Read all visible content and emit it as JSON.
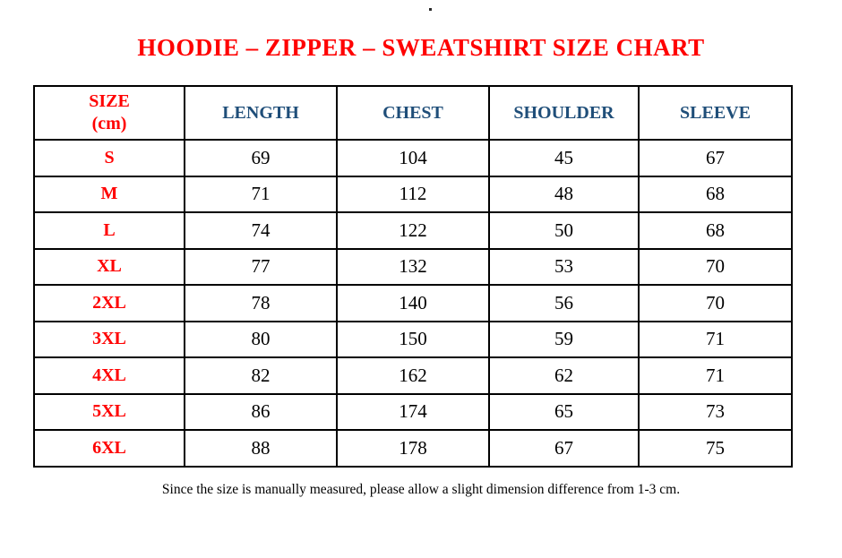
{
  "document": {
    "stray_mark": ".",
    "title": "HOODIE – ZIPPER – SWEATSHIRT SIZE CHART",
    "footnote": "Since the size is manually measured, please allow a slight dimension difference from 1-3 cm."
  },
  "colors": {
    "title_red": "#ff0000",
    "header_blue": "#1f4e79",
    "size_label_red": "#ff0000",
    "value_black": "#000000",
    "border_black": "#000000"
  },
  "table": {
    "header": {
      "size_line1": "SIZE",
      "size_line2": "(cm)",
      "length": "LENGTH",
      "chest": "CHEST",
      "shoulder": "SHOULDER",
      "sleeve": "SLEEVE"
    },
    "rows": [
      {
        "size": "S",
        "length": "69",
        "chest": "104",
        "shoulder": "45",
        "sleeve": "67"
      },
      {
        "size": "M",
        "length": "71",
        "chest": "112",
        "shoulder": "48",
        "sleeve": "68"
      },
      {
        "size": "L",
        "length": "74",
        "chest": "122",
        "shoulder": "50",
        "sleeve": "68"
      },
      {
        "size": "XL",
        "length": "77",
        "chest": "132",
        "shoulder": "53",
        "sleeve": "70"
      },
      {
        "size": "2XL",
        "length": "78",
        "chest": "140",
        "shoulder": "56",
        "sleeve": "70"
      },
      {
        "size": "3XL",
        "length": "80",
        "chest": "150",
        "shoulder": "59",
        "sleeve": "71"
      },
      {
        "size": "4XL",
        "length": "82",
        "chest": "162",
        "shoulder": "62",
        "sleeve": "71"
      },
      {
        "size": "5XL",
        "length": "86",
        "chest": "174",
        "shoulder": "65",
        "sleeve": "73"
      },
      {
        "size": "6XL",
        "length": "88",
        "chest": "178",
        "shoulder": "67",
        "sleeve": "75"
      }
    ]
  },
  "chart_data": {
    "type": "table",
    "title": "HOODIE – ZIPPER – SWEATSHIRT SIZE CHART",
    "columns": [
      "SIZE (cm)",
      "LENGTH",
      "CHEST",
      "SHOULDER",
      "SLEEVE"
    ],
    "rows": [
      [
        "S",
        69,
        104,
        45,
        67
      ],
      [
        "M",
        71,
        112,
        48,
        68
      ],
      [
        "L",
        74,
        122,
        50,
        68
      ],
      [
        "XL",
        77,
        132,
        53,
        70
      ],
      [
        "2XL",
        78,
        140,
        56,
        70
      ],
      [
        "3XL",
        80,
        150,
        59,
        71
      ],
      [
        "4XL",
        82,
        162,
        62,
        71
      ],
      [
        "5XL",
        86,
        174,
        65,
        73
      ],
      [
        "6XL",
        88,
        178,
        67,
        75
      ]
    ],
    "footnote": "Since the size is manually measured, please allow a slight dimension difference from 1-3 cm."
  }
}
